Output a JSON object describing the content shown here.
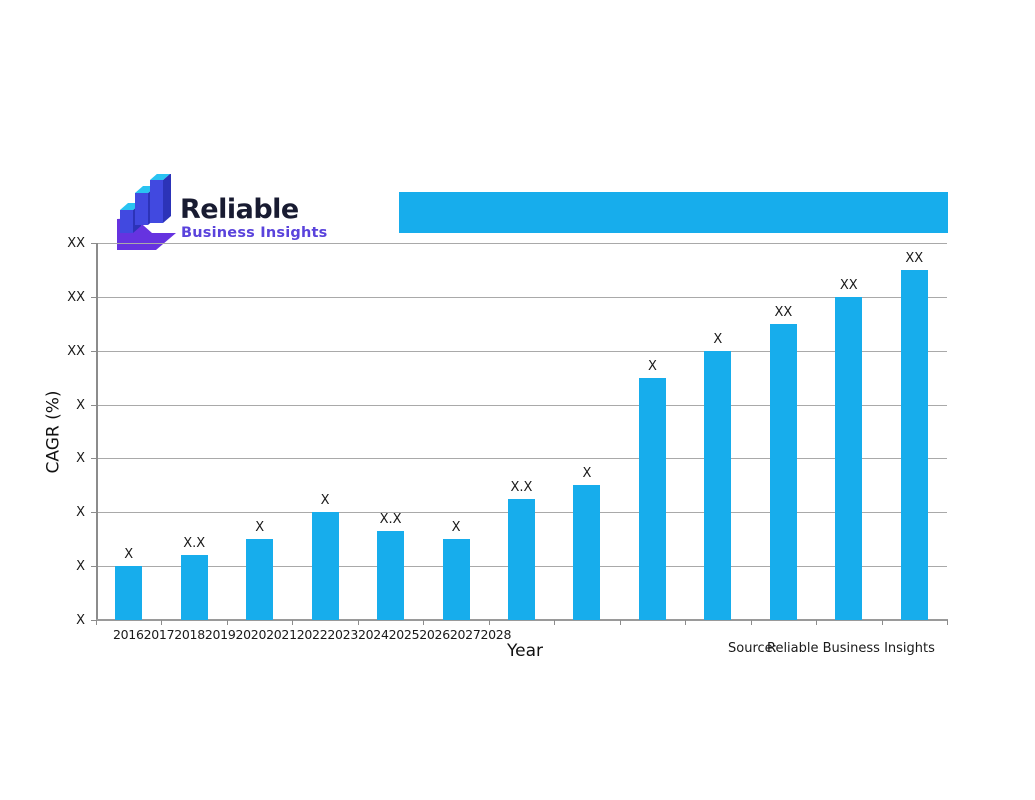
{
  "logo": {
    "title": "Reliable",
    "subtitle": "Business Insights",
    "title_color": "#181b31",
    "subtitle_color": "#5a43dc",
    "mark_colors": {
      "purple": "#6633e0",
      "bar_front": "#4149e0",
      "bar_side": "#2c33b8",
      "bar_top": "#29c3f2"
    }
  },
  "banner": {
    "color": "#17adec",
    "text": ""
  },
  "chart_data": {
    "type": "bar",
    "title": "",
    "xlabel": "Year",
    "ylabel": "CAGR (%)",
    "categories": [
      "2016",
      "2017",
      "2018",
      "2019",
      "2020",
      "2021",
      "2022",
      "2023",
      "2024",
      "2025",
      "2026",
      "2027",
      "2028"
    ],
    "values": [
      1,
      1.2,
      1.5,
      2,
      1.65,
      1.5,
      2.25,
      2.5,
      4.5,
      5,
      5.5,
      6,
      6.5
    ],
    "bar_labels": [
      "X",
      "X.X",
      "X",
      "X",
      "X.X",
      "X",
      "X.X",
      "X",
      "X",
      "X",
      "XX",
      "XX",
      "XX"
    ],
    "y_tick_labels_top_to_bottom": [
      "XX",
      "XX",
      "XX",
      "X",
      "X",
      "X",
      "X",
      "X"
    ],
    "ylim": [
      0,
      7
    ],
    "grid": true,
    "legend_position": "none",
    "bar_color": "#17adec",
    "gridline_color": "#a9a9a9"
  },
  "source": {
    "prefix": "Source:",
    "text": "Reliable Business Insights"
  }
}
